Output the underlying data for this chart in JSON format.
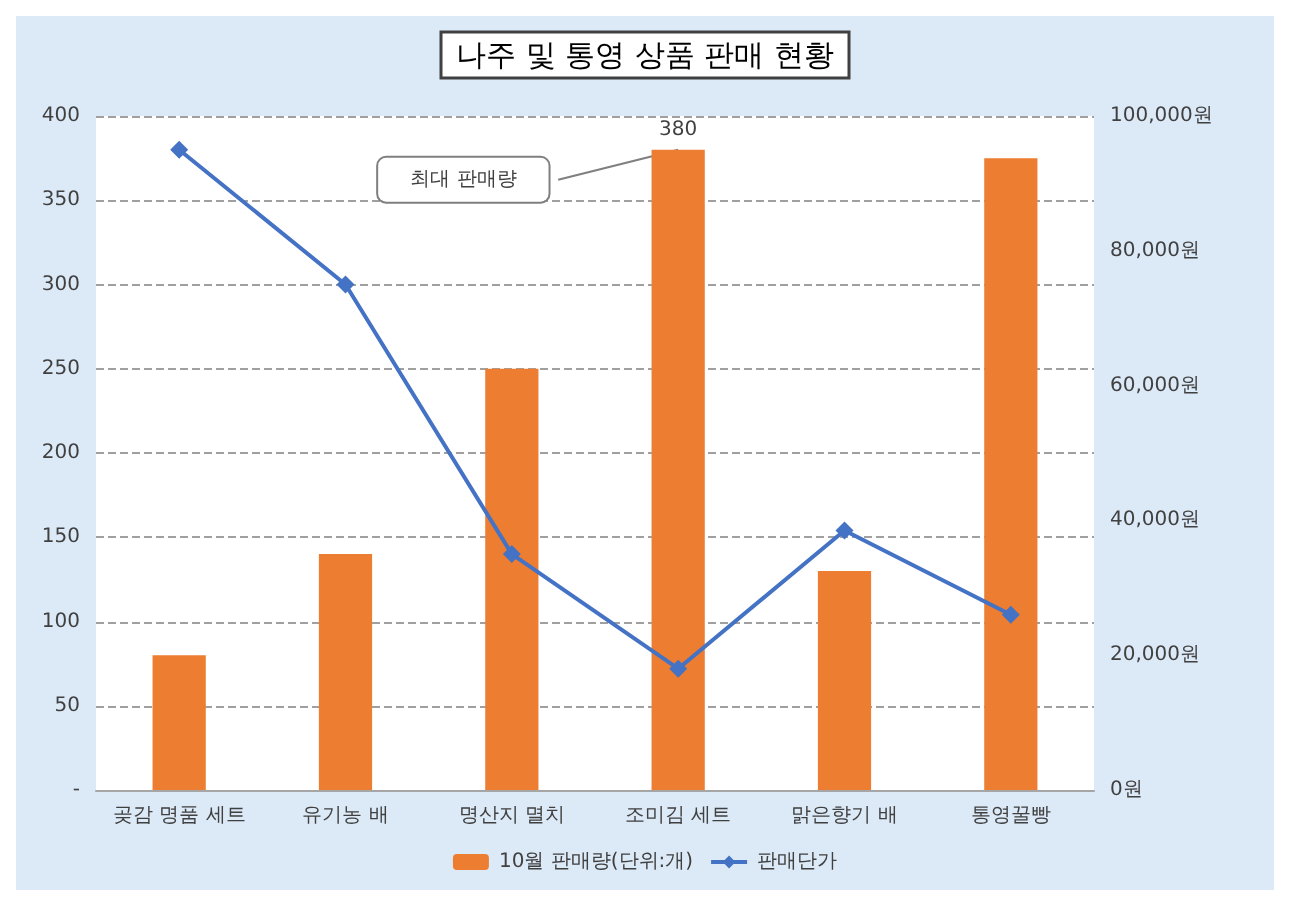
{
  "chart_data": {
    "type": "bar",
    "title": "나주 및 통영 상품 판매 현황",
    "categories": [
      "곶감 명품 세트",
      "유기농 배",
      "명산지 멸치",
      "조미김 세트",
      "맑은향기 배",
      "통영꿀빵"
    ],
    "series": [
      {
        "name": "10월 판매량(단위:개)",
        "color": "#ed7d31",
        "values": [
          80,
          140,
          250,
          380,
          130,
          375
        ],
        "value_labels": [
          null,
          null,
          null,
          "380",
          null,
          null
        ]
      },
      {
        "name": "판매단가",
        "type": "line",
        "axis": "y2",
        "color": "#4472c4",
        "values": [
          95000,
          75000,
          35000,
          18000,
          38500,
          26000
        ],
        "marker": "diamond"
      }
    ],
    "ylim": [
      0,
      400
    ],
    "yticks": [
      {
        "value": 0,
        "label": "-"
      },
      50,
      100,
      150,
      200,
      250,
      300,
      350,
      400
    ],
    "y2lim": [
      0,
      100000
    ],
    "y2ticks": [
      {
        "value": 0,
        "label": "0원"
      },
      {
        "value": 20000,
        "label": "20,000원"
      },
      {
        "value": 40000,
        "label": "40,000원"
      },
      {
        "value": 60000,
        "label": "60,000원"
      },
      {
        "value": 80000,
        "label": "80,000원"
      },
      {
        "value": 100000,
        "label": "100,000원"
      }
    ],
    "annotations": [
      "최대 판매량"
    ],
    "grid": "y",
    "legend": "bottom"
  }
}
